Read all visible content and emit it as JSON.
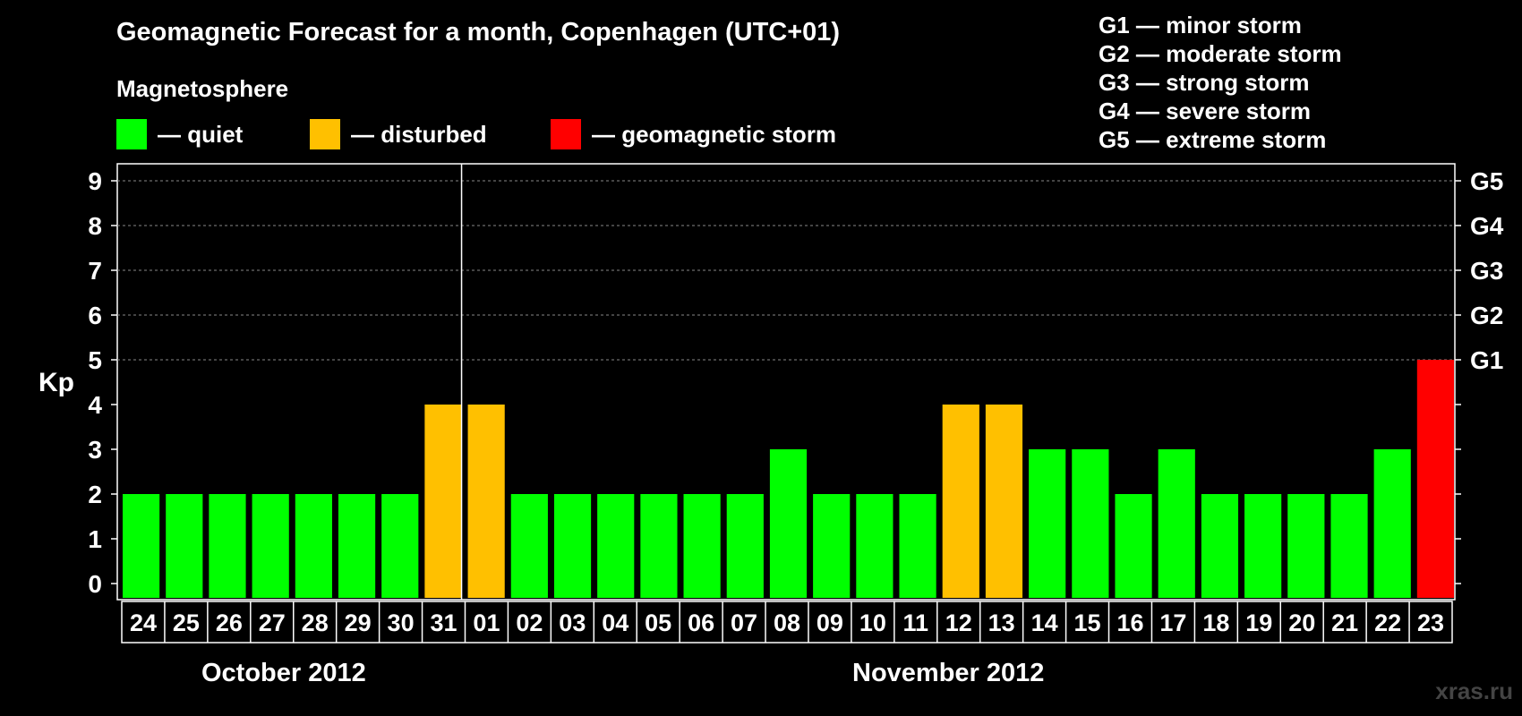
{
  "title": "Geomagnetic Forecast for a month, Copenhagen (UTC+01)",
  "legend": {
    "heading": "Magnetosphere",
    "items": [
      {
        "label": "— quiet",
        "color": "#00ff00"
      },
      {
        "label": "— disturbed",
        "color": "#ffc000"
      },
      {
        "label": "— geomagnetic storm",
        "color": "#ff0000"
      }
    ]
  },
  "storm_levels": [
    "G1 — minor storm",
    "G2 — moderate storm",
    "G3 — strong storm",
    "G4 — severe storm",
    "G5 — extreme storm"
  ],
  "months": [
    "October 2012",
    "November 2012"
  ],
  "watermark": "xras.ru",
  "chart_data": {
    "type": "bar",
    "ylabel": "Kp",
    "ylim": [
      0,
      9
    ],
    "yticks": [
      0,
      1,
      2,
      3,
      4,
      5,
      6,
      7,
      8,
      9
    ],
    "y2ticks": [
      {
        "value": 5,
        "label": "G1"
      },
      {
        "value": 6,
        "label": "G2"
      },
      {
        "value": 7,
        "label": "G3"
      },
      {
        "value": 8,
        "label": "G4"
      },
      {
        "value": 9,
        "label": "G5"
      }
    ],
    "grid": "dashed horizontal at 5–9",
    "categories": [
      "24",
      "25",
      "26",
      "27",
      "28",
      "29",
      "30",
      "31",
      "01",
      "02",
      "03",
      "04",
      "05",
      "06",
      "07",
      "08",
      "09",
      "10",
      "11",
      "12",
      "13",
      "14",
      "15",
      "16",
      "17",
      "18",
      "19",
      "20",
      "21",
      "22",
      "23"
    ],
    "values": [
      2,
      2,
      2,
      2,
      2,
      2,
      2,
      4,
      4,
      2,
      2,
      2,
      2,
      2,
      2,
      3,
      2,
      2,
      2,
      4,
      4,
      3,
      3,
      2,
      3,
      2,
      2,
      2,
      2,
      3,
      5
    ],
    "colors": {
      "quiet": "#00ff00",
      "disturbed": "#ffc000",
      "storm": "#ff0000"
    }
  }
}
